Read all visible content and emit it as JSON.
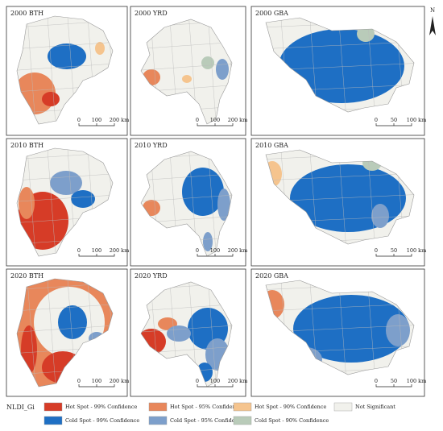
{
  "panels": [
    {
      "title": "2000 BTH",
      "scale": [
        "0",
        "100",
        "200 km"
      ]
    },
    {
      "title": "2000 YRD",
      "scale": [
        "0",
        "100",
        "200 km"
      ]
    },
    {
      "title": "2000 GBA",
      "scale": [
        "0",
        "50",
        "100 km"
      ]
    },
    {
      "title": "2010 BTH",
      "scale": [
        "0",
        "100",
        "200 km"
      ]
    },
    {
      "title": "2010 YRD",
      "scale": [
        "0",
        "100",
        "200 km"
      ]
    },
    {
      "title": "2010 GBA",
      "scale": [
        "0",
        "50",
        "100 km"
      ]
    },
    {
      "title": "2020 BTH",
      "scale": [
        "0",
        "100",
        "200 km"
      ]
    },
    {
      "title": "2020 YRD",
      "scale": [
        "0",
        "100",
        "200 km"
      ]
    },
    {
      "title": "2020 GBA",
      "scale": [
        "0",
        "50",
        "100 km"
      ]
    }
  ],
  "north": "N",
  "legend": {
    "title": "NLDI_Gi",
    "items": [
      {
        "label": "Hot Spot - 99% Confidence",
        "color": "#d63c27"
      },
      {
        "label": "Hot Spot - 95% Confidence",
        "color": "#e8875b"
      },
      {
        "label": "Hot Spot - 90% Confidence",
        "color": "#f5c48e"
      },
      {
        "label": "Not Significant",
        "color": "#f1f1ec"
      },
      {
        "label": "Cold Spot - 99% Confidence",
        "color": "#1e6fc4"
      },
      {
        "label": "Cold Spot - 95% Confidence",
        "color": "#7d9fcb"
      },
      {
        "label": "Cold Spot - 90% Confidence",
        "color": "#b9cbb9"
      }
    ]
  }
}
